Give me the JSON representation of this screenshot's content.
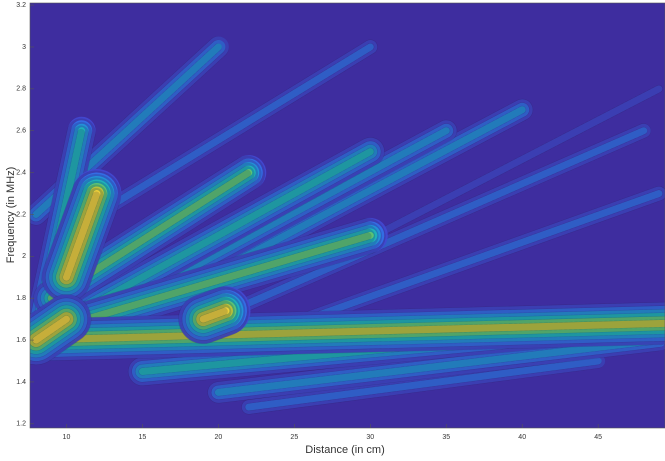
{
  "chart_data": {
    "type": "contour",
    "xlabel": "Distance (in cm)",
    "ylabel": "Frequency (in MHz)",
    "xlim": [
      7.6,
      49.4
    ],
    "ylim": [
      1.18,
      3.21
    ],
    "xticks": [
      10,
      15,
      20,
      25,
      30,
      35,
      40,
      45
    ],
    "yticks": [
      1.2,
      1.4,
      1.6,
      1.8,
      2,
      2.2,
      2.4,
      2.6,
      2.8,
      3,
      3.2
    ],
    "colormap": [
      "#3e2d9f",
      "#4249d1",
      "#3470e8",
      "#2495d8",
      "#1fb5b7",
      "#62c571",
      "#c2c33a",
      "#f3d23c"
    ],
    "ridges": [
      {
        "x": [
          8,
          20
        ],
        "y": [
          2.2,
          3.0
        ],
        "level": 3
      },
      {
        "x": [
          12,
          30
        ],
        "y": [
          2.2,
          3.0
        ],
        "level": 2
      },
      {
        "x": [
          25,
          49
        ],
        "y": [
          1.9,
          2.8
        ],
        "level": 1
      },
      {
        "x": [
          8,
          11
        ],
        "y": [
          1.6,
          2.6
        ],
        "level": 4
      },
      {
        "x": [
          18,
          48
        ],
        "y": [
          1.65,
          2.6
        ],
        "level": 2
      },
      {
        "x": [
          22,
          49
        ],
        "y": [
          1.6,
          2.3
        ],
        "level": 2
      },
      {
        "x": [
          14,
          40
        ],
        "y": [
          1.7,
          2.7
        ],
        "level": 3
      },
      {
        "x": [
          12,
          35
        ],
        "y": [
          1.7,
          2.6
        ],
        "level": 3
      },
      {
        "x": [
          10,
          30
        ],
        "y": [
          1.7,
          2.5
        ],
        "level": 4
      },
      {
        "x": [
          22,
          45
        ],
        "y": [
          1.28,
          1.5
        ],
        "level": 2
      },
      {
        "x": [
          20,
          49
        ],
        "y": [
          1.35,
          1.6
        ],
        "level": 3
      },
      {
        "x": [
          15,
          45
        ],
        "y": [
          1.45,
          1.65
        ],
        "level": 4
      },
      {
        "x": [
          7.6,
          30
        ],
        "y": [
          1.62,
          2.1
        ],
        "level": 5
      },
      {
        "x": [
          9,
          22
        ],
        "y": [
          1.8,
          2.4
        ],
        "level": 5
      },
      {
        "x": [
          7.6,
          49.4
        ],
        "y": [
          1.6,
          1.68
        ],
        "level": 6
      },
      {
        "x": [
          10,
          12
        ],
        "y": [
          1.9,
          2.3
        ],
        "level": 7
      },
      {
        "x": [
          8,
          10
        ],
        "y": [
          1.6,
          1.7
        ],
        "level": 7
      },
      {
        "x": [
          19,
          20.5
        ],
        "y": [
          1.7,
          1.74
        ],
        "level": 7
      }
    ]
  }
}
